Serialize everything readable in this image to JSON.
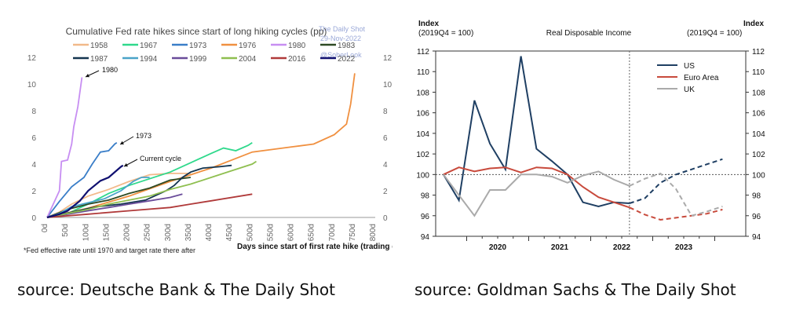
{
  "charts": [
    {
      "title": "Cumulative Fed rate hikes since start of long hiking cycles (pp)",
      "watermark": [
        "The Daily Shot",
        "29-Nov-2022",
        "@SoberLook"
      ],
      "xlabel": "Days since start of first rate hike (trading days)",
      "footnote": "*Fed effective rate until 1970 and target rate there after",
      "annotations": [
        "1980",
        "1973",
        "Current cycle"
      ],
      "caption": "source: Deutsche Bank & The Daily Shot"
    },
    {
      "title": "Real Disposable Income",
      "left_axis_label": [
        "Index",
        "(2019Q4 = 100)"
      ],
      "right_axis_label": [
        "Index",
        "(2019Q4 = 100)"
      ],
      "caption": "source: Goldman Sachs & The Daily Shot"
    }
  ],
  "chart_data": [
    {
      "type": "line",
      "title": "Cumulative Fed rate hikes since start of long hiking cycles (pp)",
      "xlabel": "Days since start of first rate hike (trading days)",
      "ylabel": "",
      "xlim": [
        0,
        800
      ],
      "ylim": [
        0,
        12
      ],
      "x_ticks": [
        "0d",
        "50d",
        "100d",
        "150d",
        "200d",
        "250d",
        "300d",
        "350d",
        "400d",
        "450d",
        "500d",
        "550d",
        "600d",
        "650d",
        "700d",
        "750d",
        "800d"
      ],
      "y_ticks": [
        "0",
        "2",
        "4",
        "6",
        "8",
        "10",
        "12"
      ],
      "x_tick_values": [
        0,
        50,
        100,
        150,
        200,
        250,
        300,
        350,
        400,
        450,
        500,
        550,
        600,
        650,
        700,
        750,
        800
      ],
      "y_tick_values": [
        0,
        2,
        4,
        6,
        8,
        10,
        12
      ],
      "series": [
        {
          "name": "1958",
          "color": "#f2b98a",
          "x": [
            0,
            30,
            60,
            100,
            150,
            200,
            250,
            300,
            350
          ],
          "values": [
            0,
            0.4,
            1,
            1.6,
            2.1,
            2.7,
            3.2,
            3.3,
            3.3
          ]
        },
        {
          "name": "1967",
          "color": "#2fd98c",
          "x": [
            0,
            50,
            100,
            150,
            200,
            250,
            300,
            350,
            400,
            430,
            460,
            490,
            500
          ],
          "values": [
            0,
            0.3,
            1,
            1.8,
            2.4,
            2.9,
            3.4,
            4.1,
            4.8,
            5.2,
            5.0,
            5.4,
            5.6
          ]
        },
        {
          "name": "1973",
          "color": "#3a7ec8",
          "x": [
            0,
            30,
            60,
            90,
            110,
            130,
            150,
            165,
            170
          ],
          "values": [
            0,
            1.2,
            2.3,
            3.0,
            4.0,
            4.9,
            5.0,
            5.5,
            5.6
          ]
        },
        {
          "name": "1976",
          "color": "#f09040",
          "x": [
            0,
            100,
            200,
            300,
            400,
            500,
            600,
            650,
            700,
            730,
            740,
            750
          ],
          "values": [
            0,
            0.7,
            1.6,
            2.7,
            3.7,
            4.9,
            5.3,
            5.5,
            6.2,
            7.0,
            8.5,
            10.8
          ]
        },
        {
          "name": "1980",
          "color": "#c78ef2",
          "x": [
            0,
            30,
            35,
            50,
            60,
            65,
            75,
            85
          ],
          "values": [
            0,
            2,
            4.2,
            4.3,
            5.5,
            6.8,
            8.3,
            10.5
          ]
        },
        {
          "name": "1983",
          "color": "#2e4a24",
          "x": [
            0,
            50,
            100,
            150,
            200,
            250,
            300,
            350
          ],
          "values": [
            0,
            0.6,
            1.0,
            1.3,
            1.8,
            2.2,
            2.8,
            3.0
          ]
        },
        {
          "name": "1987",
          "color": "#143550",
          "x": [
            0,
            60,
            120,
            180,
            240,
            290,
            310,
            330,
            350,
            380,
            420,
            450
          ],
          "values": [
            0,
            0.4,
            0.8,
            1.0,
            1.3,
            2.0,
            2.4,
            3.0,
            3.4,
            3.7,
            3.8,
            3.9
          ]
        },
        {
          "name": "1994",
          "color": "#4aa3c8",
          "x": [
            0,
            30,
            60,
            100,
            140,
            180,
            210,
            230,
            250
          ],
          "values": [
            0,
            0.3,
            0.8,
            1.1,
            1.4,
            2.0,
            2.7,
            3.0,
            3.0
          ]
        },
        {
          "name": "1999",
          "color": "#6a4c9a",
          "x": [
            0,
            50,
            100,
            150,
            200,
            250,
            300,
            330
          ],
          "values": [
            0,
            0.25,
            0.5,
            0.75,
            1.0,
            1.25,
            1.5,
            1.75
          ]
        },
        {
          "name": "2004",
          "color": "#8fbf50",
          "x": [
            0,
            50,
            100,
            150,
            200,
            250,
            300,
            350,
            400,
            450,
            500,
            510
          ],
          "values": [
            0,
            0.3,
            0.6,
            1.0,
            1.3,
            1.6,
            2.1,
            2.5,
            3.0,
            3.5,
            4.0,
            4.2
          ]
        },
        {
          "name": "2016",
          "color": "#b03a3a",
          "x": [
            0,
            100,
            200,
            300,
            350,
            400,
            500
          ],
          "values": [
            0,
            0.25,
            0.5,
            0.75,
            1.0,
            1.25,
            1.75
          ]
        },
        {
          "name": "2022",
          "color": "#101070",
          "x": [
            0,
            30,
            50,
            80,
            100,
            130,
            150,
            180,
            185
          ],
          "values": [
            0,
            0.25,
            0.5,
            1.25,
            2.0,
            2.75,
            3.0,
            3.8,
            3.9
          ]
        }
      ]
    },
    {
      "type": "line",
      "title": "Real Disposable Income",
      "ylabel": "Index (2019Q4 = 100)",
      "xlim": [
        2019.5,
        2024.5
      ],
      "ylim": [
        94,
        112
      ],
      "x_ticks": [
        "2020",
        "2021",
        "2022",
        "2023"
      ],
      "x_tick_values": [
        2020.0,
        2021.0,
        2022.0,
        2023.0
      ],
      "y_ticks": [
        "94",
        "96",
        "98",
        "100",
        "102",
        "104",
        "106",
        "108",
        "110",
        "112"
      ],
      "y_tick_values": [
        94,
        96,
        98,
        100,
        102,
        104,
        106,
        108,
        110,
        112
      ],
      "reference_line": 100,
      "forecast_start": 2022.625,
      "series": [
        {
          "name": "US",
          "color": "#1f3f63",
          "x": [
            2019.625,
            2019.875,
            2020.125,
            2020.375,
            2020.625,
            2020.875,
            2021.125,
            2021.375,
            2021.625,
            2021.875,
            2022.125,
            2022.375,
            2022.625,
            2022.875,
            2023.125,
            2023.375,
            2023.625,
            2023.875,
            2024.125
          ],
          "values": [
            100,
            97.5,
            107.2,
            103,
            100.5,
            111.5,
            102.5,
            101.3,
            100,
            97.3,
            96.9,
            97.3,
            97.2,
            97.7,
            99.2,
            100,
            100.5,
            101,
            101.5
          ]
        },
        {
          "name": "Euro Area",
          "color": "#c84a3c",
          "x": [
            2019.625,
            2019.875,
            2020.125,
            2020.375,
            2020.625,
            2020.875,
            2021.125,
            2021.375,
            2021.625,
            2021.875,
            2022.125,
            2022.375,
            2022.625,
            2022.875,
            2023.125,
            2023.375,
            2023.625,
            2023.875,
            2024.125
          ],
          "values": [
            100,
            100.7,
            100.3,
            100.6,
            100.7,
            100.2,
            100.7,
            100.6,
            100,
            98.8,
            97.8,
            97.3,
            96.8,
            96.1,
            95.6,
            95.8,
            96.0,
            96.2,
            96.6
          ]
        },
        {
          "name": "UK",
          "color": "#aaaaaa",
          "x": [
            2019.625,
            2019.875,
            2020.125,
            2020.375,
            2020.625,
            2020.875,
            2021.125,
            2021.375,
            2021.625,
            2021.875,
            2022.125,
            2022.375,
            2022.625,
            2022.875,
            2023.125,
            2023.375,
            2023.625,
            2023.875,
            2024.125
          ],
          "values": [
            100,
            98,
            96,
            98.5,
            98.5,
            100,
            100,
            99.8,
            99.2,
            99.9,
            100.3,
            99.5,
            98.9,
            99.6,
            100.1,
            98.6,
            96,
            96.4,
            96.9
          ]
        }
      ]
    }
  ]
}
